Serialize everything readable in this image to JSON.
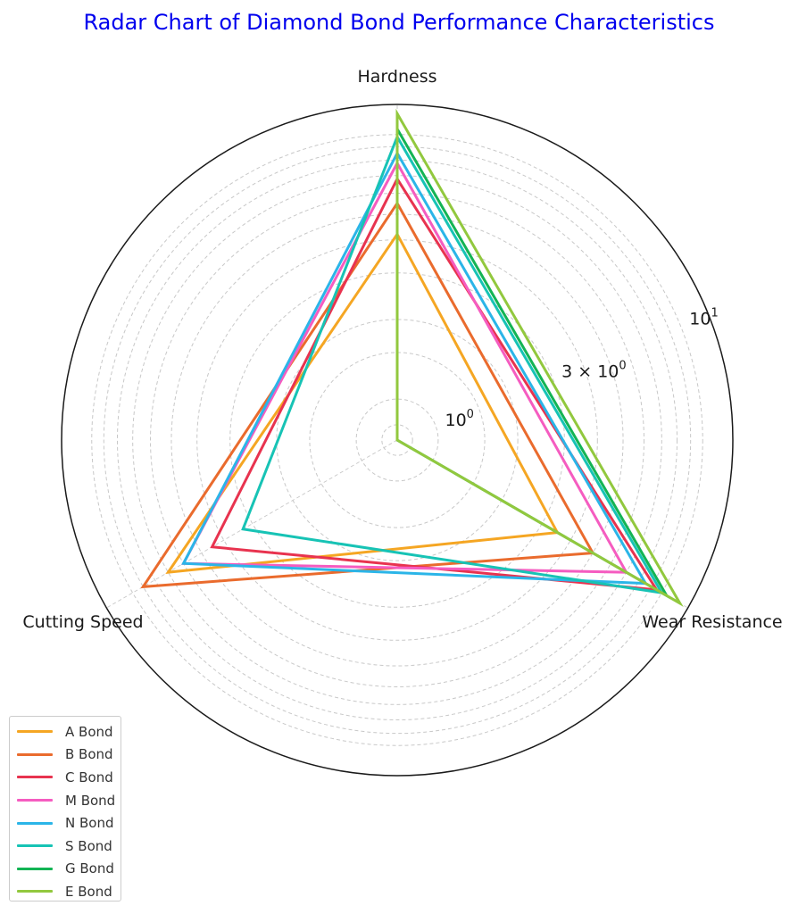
{
  "chart_data": {
    "type": "radar",
    "title": "Radar Chart of Diamond Bond Performance Characteristics",
    "axes": [
      "Hardness",
      "Wear Resistance",
      "Cutting Speed"
    ],
    "radial_scale": "log",
    "radial_range": [
      0.7,
      13
    ],
    "radial_ticks": [
      {
        "value": 1,
        "base": "10",
        "exp": "0"
      },
      {
        "value": 3,
        "base": "3 × 10",
        "exp": "0"
      },
      {
        "value": 10,
        "base": "10",
        "exp": "1"
      }
    ],
    "grid": true,
    "legend_position": "lower-left",
    "series": [
      {
        "name": "A Bond",
        "color": "#f5a623",
        "values": [
          4.2,
          3.5,
          7.0
        ]
      },
      {
        "name": "B Bond",
        "color": "#ea6b2d",
        "values": [
          5.5,
          5.0,
          9.0
        ]
      },
      {
        "name": "C Bond",
        "color": "#e8334f",
        "values": [
          6.8,
          9.5,
          4.5
        ]
      },
      {
        "name": "M Bond",
        "color": "#f55cc0",
        "values": [
          7.8,
          7.0,
          6.0
        ]
      },
      {
        "name": "N Bond",
        "color": "#2bb5e8",
        "values": [
          8.5,
          8.5,
          6.0
        ]
      },
      {
        "name": "S Bond",
        "color": "#17c3b5",
        "values": [
          9.8,
          10.0,
          3.3
        ]
      },
      {
        "name": "G Bond",
        "color": "#13b454",
        "values": [
          10.5,
          10.5,
          0.7
        ]
      },
      {
        "name": "E Bond",
        "color": "#92c83e",
        "values": [
          12.0,
          12.0,
          0.7
        ]
      }
    ]
  }
}
